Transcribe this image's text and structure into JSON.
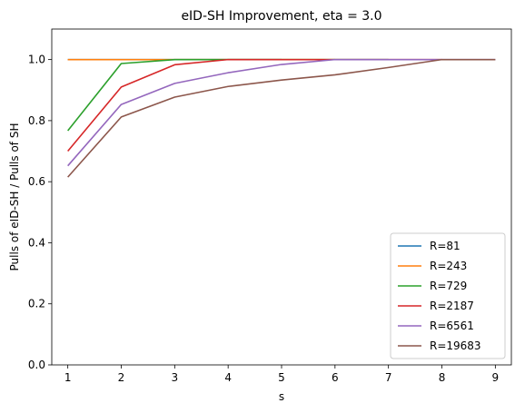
{
  "chart_data": {
    "type": "line",
    "title": "eID-SH Improvement, eta = 3.0",
    "xlabel": "s",
    "ylabel": "Pulls of eID-SH / Pulls of SH",
    "xlim": [
      0.7,
      9.3
    ],
    "ylim": [
      0.0,
      1.1
    ],
    "xticks": [
      1,
      2,
      3,
      4,
      5,
      6,
      7,
      8,
      9
    ],
    "yticks": [
      0.0,
      0.2,
      0.4,
      0.6,
      0.8,
      1.0
    ],
    "ytick_labels": [
      "0.0",
      "0.2",
      "0.4",
      "0.6",
      "0.8",
      "1.0"
    ],
    "grid": false,
    "legend_position": "lower-right",
    "series": [
      {
        "name": "R=81",
        "color": "#1f77b4",
        "x": [
          1,
          2,
          3,
          4,
          5
        ],
        "y": [
          1.0,
          1.0,
          1.0,
          1.0,
          1.0
        ]
      },
      {
        "name": "R=243",
        "color": "#ff7f0e",
        "x": [
          1,
          2,
          3,
          4,
          5,
          6
        ],
        "y": [
          1.0,
          1.0,
          1.0,
          1.0,
          1.0,
          1.0
        ]
      },
      {
        "name": "R=729",
        "color": "#2ca02c",
        "x": [
          1,
          2,
          3,
          4,
          5,
          6,
          7
        ],
        "y": [
          0.767,
          0.987,
          1.0,
          1.0,
          1.0,
          1.0,
          1.0
        ]
      },
      {
        "name": "R=2187",
        "color": "#d62728",
        "x": [
          1,
          2,
          3,
          4,
          5,
          6,
          7,
          8
        ],
        "y": [
          0.7,
          0.91,
          0.983,
          1.0,
          1.0,
          1.0,
          1.0,
          1.0
        ]
      },
      {
        "name": "R=6561",
        "color": "#9467bd",
        "x": [
          1,
          2,
          3,
          4,
          5,
          6,
          7,
          8,
          9
        ],
        "y": [
          0.652,
          0.853,
          0.922,
          0.957,
          0.984,
          1.0,
          1.0,
          1.0,
          1.0
        ]
      },
      {
        "name": "R=19683",
        "color": "#8c564b",
        "x": [
          1,
          2,
          3,
          4,
          5,
          6,
          7,
          8,
          9
        ],
        "y": [
          0.615,
          0.812,
          0.877,
          0.912,
          0.933,
          0.95,
          0.974,
          1.0,
          1.0
        ]
      }
    ]
  }
}
